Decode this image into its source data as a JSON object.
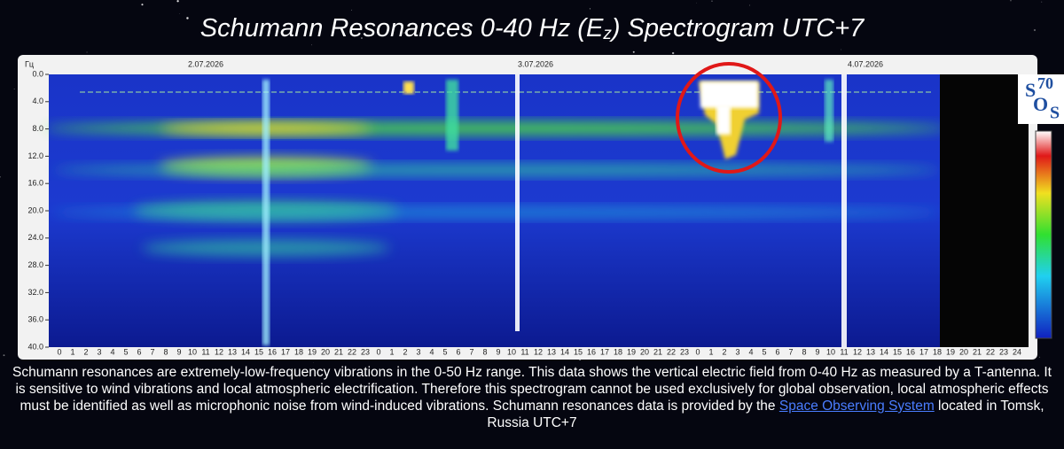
{
  "chart_data": {
    "type": "heatmap",
    "title_parts": [
      "Schumann Resonances 0-40 Hz (E",
      "z",
      ") Spectrogram UTC+7"
    ],
    "y_unit": "Гц",
    "ylim": [
      0,
      40
    ],
    "yticks": [
      {
        "value": 0,
        "label": "0.0"
      },
      {
        "value": 4,
        "label": "4.0"
      },
      {
        "value": 8,
        "label": "8.0"
      },
      {
        "value": 12,
        "label": "12.0"
      },
      {
        "value": 16,
        "label": "16.0"
      },
      {
        "value": 20,
        "label": "20.0"
      },
      {
        "value": 24,
        "label": "24.0"
      },
      {
        "value": 28,
        "label": "28.0"
      },
      {
        "value": 32,
        "label": "32.0"
      },
      {
        "value": 36,
        "label": "36.0"
      },
      {
        "value": 40,
        "label": "40.0"
      }
    ],
    "dates": [
      "2.07.2026",
      "3.07.2026",
      "4.07.2026"
    ],
    "hours": [
      0,
      1,
      2,
      3,
      4,
      5,
      6,
      7,
      8,
      9,
      10,
      11,
      12,
      13,
      14,
      15,
      16,
      17,
      18,
      19,
      20,
      21,
      22,
      23,
      0,
      1,
      2,
      3,
      4,
      5,
      6,
      7,
      8,
      9,
      10,
      11,
      12,
      13,
      14,
      15,
      16,
      17,
      18,
      19,
      20,
      21,
      22,
      23,
      0,
      1,
      2,
      3,
      4,
      5,
      6,
      7,
      8,
      9,
      10,
      11,
      12,
      13,
      14,
      15,
      16,
      17,
      18,
      19,
      20,
      21,
      22,
      23,
      24
    ]
  },
  "logo": [
    "S",
    "70",
    "O",
    "S"
  ],
  "description": {
    "before": "Schumann resonances are extremely-low-frequency vibrations in the 0-50 Hz range. This data shows the vertical electric field from 0-40 Hz as measured by a T-antenna. It is sensitive to wind vibrations and local atmospheric electrification. Therefore this spectrogram cannot be used exclusively for global observation, local atmospheric effects must be identified as well as microphonic noise from wind-induced vibrations. Schumann resonances data is provided by the ",
    "link": "Space Observing System",
    "after": " located in Tomsk, Russia UTC+7"
  }
}
